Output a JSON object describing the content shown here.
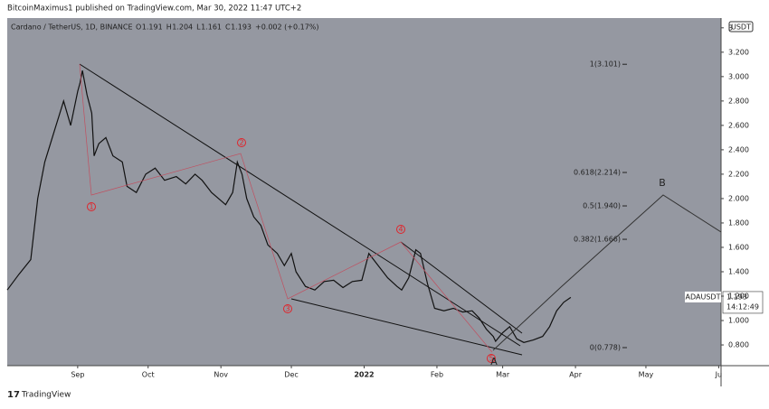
{
  "header": {
    "text": "BitcoinMaximus1 published on TradingView.com, Mar 30, 2022 11:47 UTC+2"
  },
  "footer": {
    "brand": "TradingView"
  },
  "chart_data": {
    "type": "line",
    "title": "Cardano / TetherUS, 1D, BINANCE",
    "ohlc_text": [
      "O",
      "1.191",
      "H",
      "1.204",
      "L",
      "1.161",
      "C",
      "1.193",
      "+0.002 (+0.17%)"
    ],
    "currency": "USDT",
    "symbol": "ADAUSDT",
    "last_price": {
      "value": 1.193,
      "label": "1.193"
    },
    "countdown": "14:12:49",
    "color": "#111111",
    "x": [
      -30,
      -25,
      -20,
      -17,
      -14,
      -10,
      -6,
      -3,
      0,
      1,
      2,
      4,
      6,
      7,
      9,
      12,
      15,
      19,
      21,
      25,
      29,
      33,
      37,
      42,
      46,
      50,
      53,
      57,
      60,
      63,
      66,
      68,
      70,
      72,
      75,
      78,
      81,
      85,
      88,
      91,
      93,
      97,
      101,
      105,
      109,
      113,
      117,
      121,
      124,
      128,
      132,
      136,
      138,
      141,
      144,
      146,
      149,
      152,
      156,
      160,
      164,
      168,
      171,
      174,
      177,
      178,
      181,
      184,
      187,
      190,
      194,
      198,
      201,
      204,
      207,
      210
    ],
    "values": [
      1.25,
      1.38,
      1.5,
      2.0,
      2.3,
      2.55,
      2.8,
      2.6,
      2.88,
      2.95,
      3.05,
      2.85,
      2.7,
      2.35,
      2.45,
      2.5,
      2.35,
      2.3,
      2.1,
      2.05,
      2.2,
      2.25,
      2.15,
      2.18,
      2.12,
      2.2,
      2.15,
      2.05,
      2.0,
      1.95,
      2.05,
      2.3,
      2.2,
      2.0,
      1.85,
      1.78,
      1.62,
      1.55,
      1.45,
      1.55,
      1.4,
      1.28,
      1.25,
      1.32,
      1.33,
      1.27,
      1.32,
      1.33,
      1.55,
      1.45,
      1.35,
      1.28,
      1.25,
      1.35,
      1.58,
      1.55,
      1.3,
      1.1,
      1.08,
      1.1,
      1.07,
      1.08,
      1.02,
      0.93,
      0.87,
      0.83,
      0.9,
      0.95,
      0.85,
      0.82,
      0.84,
      0.87,
      0.95,
      1.08,
      1.15,
      1.19
    ],
    "xlim": [
      -30,
      274
    ],
    "ylim": [
      0.63,
      3.48
    ],
    "xticks": [
      {
        "value": 0,
        "label": "Sep"
      },
      {
        "value": 30,
        "label": "Oct"
      },
      {
        "value": 61,
        "label": "Nov"
      },
      {
        "value": 91,
        "label": "Dec"
      },
      {
        "value": 122,
        "label": "2022"
      },
      {
        "value": 153,
        "label": "Feb"
      },
      {
        "value": 181,
        "label": "Mar"
      },
      {
        "value": 212,
        "label": "Apr"
      },
      {
        "value": 242,
        "label": "May"
      },
      {
        "value": 273,
        "label": "Ju"
      }
    ],
    "yticks": [
      {
        "value": 0.8,
        "label": "0.800"
      },
      {
        "value": 1.0,
        "label": "1.000"
      },
      {
        "value": 1.2,
        "label": "1.200"
      },
      {
        "value": 1.4,
        "label": "1.400"
      },
      {
        "value": 1.6,
        "label": "1.600"
      },
      {
        "value": 1.8,
        "label": "1.800"
      },
      {
        "value": 2.0,
        "label": "2.000"
      },
      {
        "value": 2.2,
        "label": "2.200"
      },
      {
        "value": 2.4,
        "label": "2.400"
      },
      {
        "value": 2.6,
        "label": "2.600"
      },
      {
        "value": 2.8,
        "label": "2.800"
      },
      {
        "value": 3.0,
        "label": "3.000"
      },
      {
        "value": 3.2,
        "label": "3.200"
      },
      {
        "value": 3.4,
        "label": "3"
      }
    ],
    "fib_levels": [
      {
        "value": 3.101,
        "label": "1(3.101)"
      },
      {
        "value": 2.214,
        "label": "0.618(2.214)"
      },
      {
        "value": 1.94,
        "label": "0.5(1.940)"
      },
      {
        "value": 1.666,
        "label": "0.382(1.666)"
      },
      {
        "value": 0.778,
        "label": "0(0.778)"
      }
    ],
    "wave_labels": [
      "1",
      "2",
      "3",
      "4",
      "5",
      "A",
      "B"
    ]
  }
}
